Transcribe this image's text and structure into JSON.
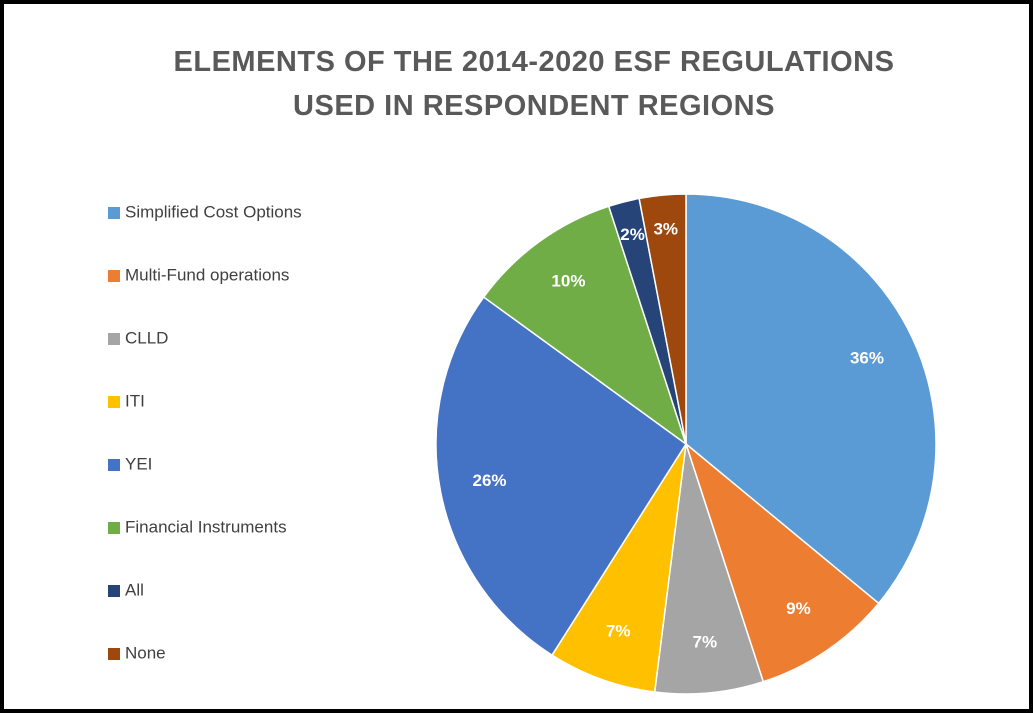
{
  "chart_data": {
    "type": "pie",
    "title": "ELEMENTS OF THE 2014-2020 ESF REGULATIONS USED IN RESPONDENT REGIONS",
    "categories": [
      "Simplified Cost Options",
      "Multi-Fund operations",
      "CLLD",
      "ITI",
      "YEI",
      "Financial Instruments",
      "All",
      "None"
    ],
    "values": [
      36,
      9,
      7,
      7,
      26,
      10,
      2,
      3
    ],
    "value_labels": [
      "36%",
      "9%",
      "7%",
      "7%",
      "26%",
      "10%",
      "2%",
      "3%"
    ],
    "colors": [
      "#5b9bd5",
      "#ed7d31",
      "#a5a5a5",
      "#ffc000",
      "#4472c4",
      "#70ad47",
      "#264478",
      "#9e480e"
    ],
    "legend": "left"
  }
}
